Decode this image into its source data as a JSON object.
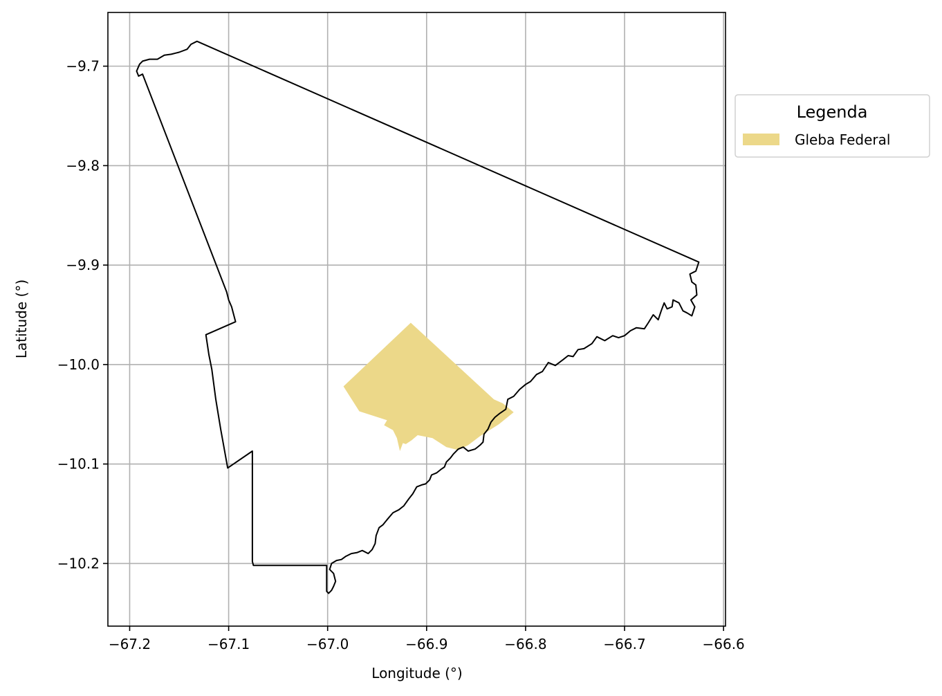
{
  "map": {
    "xlabel": "Longitude (°)",
    "ylabel": "Latitude (°)",
    "x_ticks": [
      "−67.2",
      "−67.1",
      "−67.0",
      "−66.9",
      "−66.8",
      "−66.7",
      "−66.6"
    ],
    "y_ticks": [
      "−9.7",
      "−9.8",
      "−9.9",
      "−10.0",
      "−10.1",
      "−10.2"
    ],
    "grid": true
  },
  "legend": {
    "title": "Legenda",
    "item_label": "Gleba Federal",
    "item_color": "#ecd889"
  },
  "chart_data": {
    "type": "map",
    "xlim": [
      -67.222,
      -66.598
    ],
    "ylim": [
      -10.263,
      -9.646
    ],
    "x_tick_values": [
      -67.2,
      -67.1,
      -67.0,
      -66.9,
      -66.8,
      -66.7,
      -66.6
    ],
    "y_tick_values": [
      -9.7,
      -9.8,
      -9.9,
      -10.0,
      -10.1,
      -10.2
    ],
    "boundary_color": "#000000",
    "grid_color": "#b0b0b0",
    "outline": [
      [
        -67.132,
        -9.675
      ],
      [
        -66.625,
        -9.897
      ],
      [
        -66.628,
        -9.906
      ],
      [
        -66.634,
        -9.909
      ],
      [
        -66.632,
        -9.917
      ],
      [
        -66.628,
        -9.92
      ],
      [
        -66.627,
        -9.93
      ],
      [
        -66.633,
        -9.935
      ],
      [
        -66.629,
        -9.942
      ],
      [
        -66.632,
        -9.951
      ],
      [
        -66.637,
        -9.948
      ],
      [
        -66.641,
        -9.946
      ],
      [
        -66.645,
        -9.938
      ],
      [
        -66.651,
        -9.935
      ],
      [
        -66.652,
        -9.942
      ],
      [
        -66.657,
        -9.944
      ],
      [
        -66.66,
        -9.938
      ],
      [
        -66.663,
        -9.946
      ],
      [
        -66.666,
        -9.955
      ],
      [
        -66.671,
        -9.95
      ],
      [
        -66.676,
        -9.958
      ],
      [
        -66.68,
        -9.964
      ],
      [
        -66.688,
        -9.963
      ],
      [
        -66.694,
        -9.966
      ],
      [
        -66.7,
        -9.971
      ],
      [
        -66.706,
        -9.973
      ],
      [
        -66.712,
        -9.971
      ],
      [
        -66.72,
        -9.976
      ],
      [
        -66.728,
        -9.972
      ],
      [
        -66.733,
        -9.979
      ],
      [
        -66.741,
        -9.984
      ],
      [
        -66.747,
        -9.985
      ],
      [
        -66.752,
        -9.992
      ],
      [
        -66.757,
        -9.991
      ],
      [
        -66.762,
        -9.995
      ],
      [
        -66.77,
        -10.001
      ],
      [
        -66.777,
        -9.998
      ],
      [
        -66.783,
        -10.007
      ],
      [
        -66.789,
        -10.01
      ],
      [
        -66.795,
        -10.017
      ],
      [
        -66.8,
        -10.02
      ],
      [
        -66.806,
        -10.025
      ],
      [
        -66.812,
        -10.032
      ],
      [
        -66.818,
        -10.035
      ],
      [
        -66.82,
        -10.045
      ],
      [
        -66.826,
        -10.049
      ],
      [
        -66.831,
        -10.053
      ],
      [
        -66.835,
        -10.058
      ],
      [
        -66.838,
        -10.065
      ],
      [
        -66.842,
        -10.07
      ],
      [
        -66.843,
        -10.078
      ],
      [
        -66.846,
        -10.081
      ],
      [
        -66.851,
        -10.085
      ],
      [
        -66.858,
        -10.087
      ],
      [
        -66.863,
        -10.083
      ],
      [
        -66.868,
        -10.085
      ],
      [
        -66.873,
        -10.09
      ],
      [
        -66.876,
        -10.094
      ],
      [
        -66.88,
        -10.098
      ],
      [
        -66.882,
        -10.103
      ],
      [
        -66.885,
        -10.105
      ],
      [
        -66.89,
        -10.109
      ],
      [
        -66.895,
        -10.111
      ],
      [
        -66.897,
        -10.116
      ],
      [
        -66.901,
        -10.12
      ],
      [
        -66.905,
        -10.121
      ],
      [
        -66.91,
        -10.123
      ],
      [
        -66.914,
        -10.13
      ],
      [
        -66.918,
        -10.135
      ],
      [
        -66.923,
        -10.142
      ],
      [
        -66.928,
        -10.146
      ],
      [
        -66.934,
        -10.149
      ],
      [
        -66.94,
        -10.156
      ],
      [
        -66.944,
        -10.161
      ],
      [
        -66.948,
        -10.164
      ],
      [
        -66.951,
        -10.172
      ],
      [
        -66.952,
        -10.18
      ],
      [
        -66.955,
        -10.186
      ],
      [
        -66.959,
        -10.19
      ],
      [
        -66.965,
        -10.187
      ],
      [
        -66.97,
        -10.189
      ],
      [
        -66.976,
        -10.19
      ],
      [
        -66.982,
        -10.193
      ],
      [
        -66.986,
        -10.196
      ],
      [
        -66.991,
        -10.197
      ],
      [
        -66.996,
        -10.2
      ],
      [
        -66.998,
        -10.206
      ],
      [
        -66.994,
        -10.21
      ],
      [
        -66.992,
        -10.218
      ],
      [
        -66.994,
        -10.223
      ],
      [
        -66.996,
        -10.227
      ],
      [
        -66.999,
        -10.23
      ],
      [
        -67.001,
        -10.228
      ],
      [
        -67.001,
        -10.202
      ],
      [
        -67.075,
        -10.202
      ],
      [
        -67.076,
        -10.198
      ],
      [
        -67.076,
        -10.087
      ],
      [
        -67.101,
        -10.104
      ],
      [
        -67.108,
        -10.065
      ],
      [
        -67.113,
        -10.035
      ],
      [
        -67.117,
        -10.005
      ],
      [
        -67.12,
        -9.99
      ],
      [
        -67.123,
        -9.97
      ],
      [
        -67.093,
        -9.957
      ],
      [
        -67.097,
        -9.942
      ],
      [
        -67.1,
        -9.935
      ],
      [
        -67.102,
        -9.927
      ],
      [
        -67.187,
        -9.708
      ],
      [
        -67.191,
        -9.71
      ],
      [
        -67.193,
        -9.705
      ],
      [
        -67.19,
        -9.698
      ],
      [
        -67.187,
        -9.695
      ],
      [
        -67.18,
        -9.693
      ],
      [
        -67.172,
        -9.693
      ],
      [
        -67.165,
        -9.689
      ],
      [
        -67.158,
        -9.688
      ],
      [
        -67.15,
        -9.686
      ],
      [
        -67.142,
        -9.683
      ],
      [
        -67.138,
        -9.678
      ],
      [
        -67.132,
        -9.675
      ]
    ],
    "gleba_federal": [
      [
        -66.984,
        -10.022
      ],
      [
        -66.916,
        -9.958
      ],
      [
        -66.832,
        -10.035
      ],
      [
        -66.823,
        -10.039
      ],
      [
        -66.812,
        -10.048
      ],
      [
        -66.827,
        -10.06
      ],
      [
        -66.846,
        -10.072
      ],
      [
        -66.858,
        -10.081
      ],
      [
        -66.868,
        -10.086
      ],
      [
        -66.88,
        -10.083
      ],
      [
        -66.894,
        -10.074
      ],
      [
        -66.909,
        -10.071
      ],
      [
        -66.915,
        -10.076
      ],
      [
        -66.921,
        -10.08
      ],
      [
        -66.924,
        -10.079
      ],
      [
        -66.927,
        -10.087
      ],
      [
        -66.93,
        -10.074
      ],
      [
        -66.934,
        -10.066
      ],
      [
        -66.943,
        -10.061
      ],
      [
        -66.94,
        -10.056
      ],
      [
        -66.968,
        -10.047
      ]
    ]
  }
}
